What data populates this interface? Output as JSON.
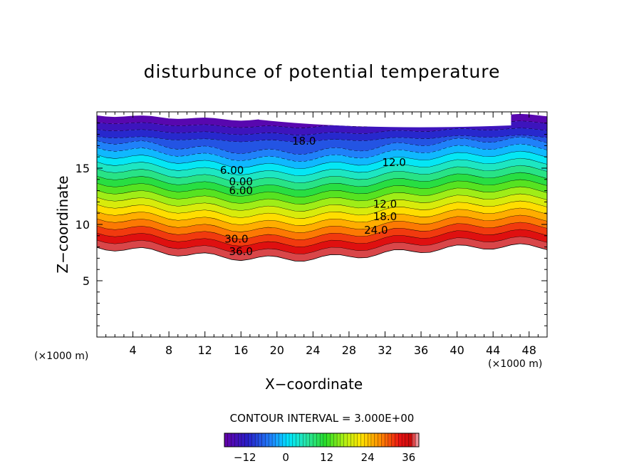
{
  "chart_data": {
    "type": "contour",
    "title": "disturbunce of potential temperature",
    "xlabel": "X−coordinate",
    "ylabel": "Z−coordinate",
    "x_unit": "(×1000 m)",
    "x_unit_right": "(×1000 m)",
    "xlim": [
      0,
      50
    ],
    "ylim": [
      0,
      20
    ],
    "x_ticks": [
      4,
      8,
      12,
      16,
      20,
      24,
      28,
      32,
      36,
      40,
      44,
      48
    ],
    "y_ticks": [
      5,
      10,
      15
    ],
    "contour_interval_label": "CONTOUR INTERVAL = 3.000E+00",
    "colorbar": {
      "range": [
        -18,
        39
      ],
      "ticks": [
        -12,
        0,
        12,
        24,
        36
      ],
      "tick_labels": [
        "−12",
        "0",
        "12",
        "24",
        "36"
      ]
    },
    "contour_labels": [
      {
        "text": "18.0",
        "x": 23,
        "z": 17.4,
        "negative": true
      },
      {
        "text": "12.0",
        "x": 33,
        "z": 15.5,
        "negative": true
      },
      {
        "text": "6.00",
        "x": 15,
        "z": 14.8,
        "negative": true
      },
      {
        "text": "0.00",
        "x": 16,
        "z": 13.8,
        "negative": false
      },
      {
        "text": "6.00",
        "x": 16,
        "z": 13.0,
        "negative": false
      },
      {
        "text": "12.0",
        "x": 32,
        "z": 11.8,
        "negative": false
      },
      {
        "text": "18.0",
        "x": 32,
        "z": 10.7,
        "negative": false
      },
      {
        "text": "24.0",
        "x": 31,
        "z": 9.5,
        "negative": false
      },
      {
        "text": "30.0",
        "x": 15.5,
        "z": 8.7,
        "negative": false
      },
      {
        "text": "36.0",
        "x": 16,
        "z": 7.6,
        "negative": false
      }
    ],
    "colors": {
      "low": "#6600a8",
      "mid_neg": "#1e9cff",
      "zero": "#38e8b0",
      "mid_pos": "#d8f020",
      "high": "#e81818",
      "top": "#f8b8c0"
    }
  }
}
